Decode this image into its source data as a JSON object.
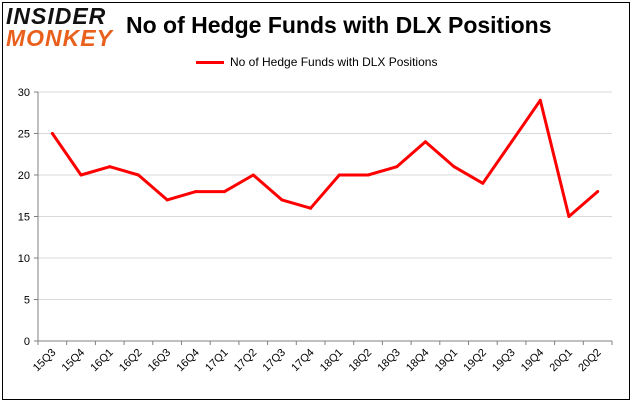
{
  "logo": {
    "line1": "INSIDER",
    "line2": "MONKEY"
  },
  "colors": {
    "series": "#ff0000",
    "grid": "#d9d9d9",
    "logo_accent": "#e8601c"
  },
  "chart_data": {
    "type": "line",
    "title": "No of Hedge Funds with DLX Positions",
    "xlabel": "",
    "ylabel": "",
    "ylim": [
      0,
      30
    ],
    "yticks": [
      0,
      5,
      10,
      15,
      20,
      25,
      30
    ],
    "grid": true,
    "legend_position": "top-center",
    "categories": [
      "15Q3",
      "15Q4",
      "16Q1",
      "16Q2",
      "16Q3",
      "16Q4",
      "17Q1",
      "17Q2",
      "17Q3",
      "17Q4",
      "18Q1",
      "18Q2",
      "18Q3",
      "18Q4",
      "19Q1",
      "19Q2",
      "19Q3",
      "19Q4",
      "20Q1",
      "20Q2"
    ],
    "series": [
      {
        "name": "No of Hedge Funds with DLX Positions",
        "color": "#ff0000",
        "values": [
          25,
          20,
          21,
          20,
          17,
          18,
          18,
          20,
          17,
          16,
          20,
          20,
          21,
          24,
          21,
          19,
          24,
          29,
          15,
          18
        ]
      }
    ]
  }
}
